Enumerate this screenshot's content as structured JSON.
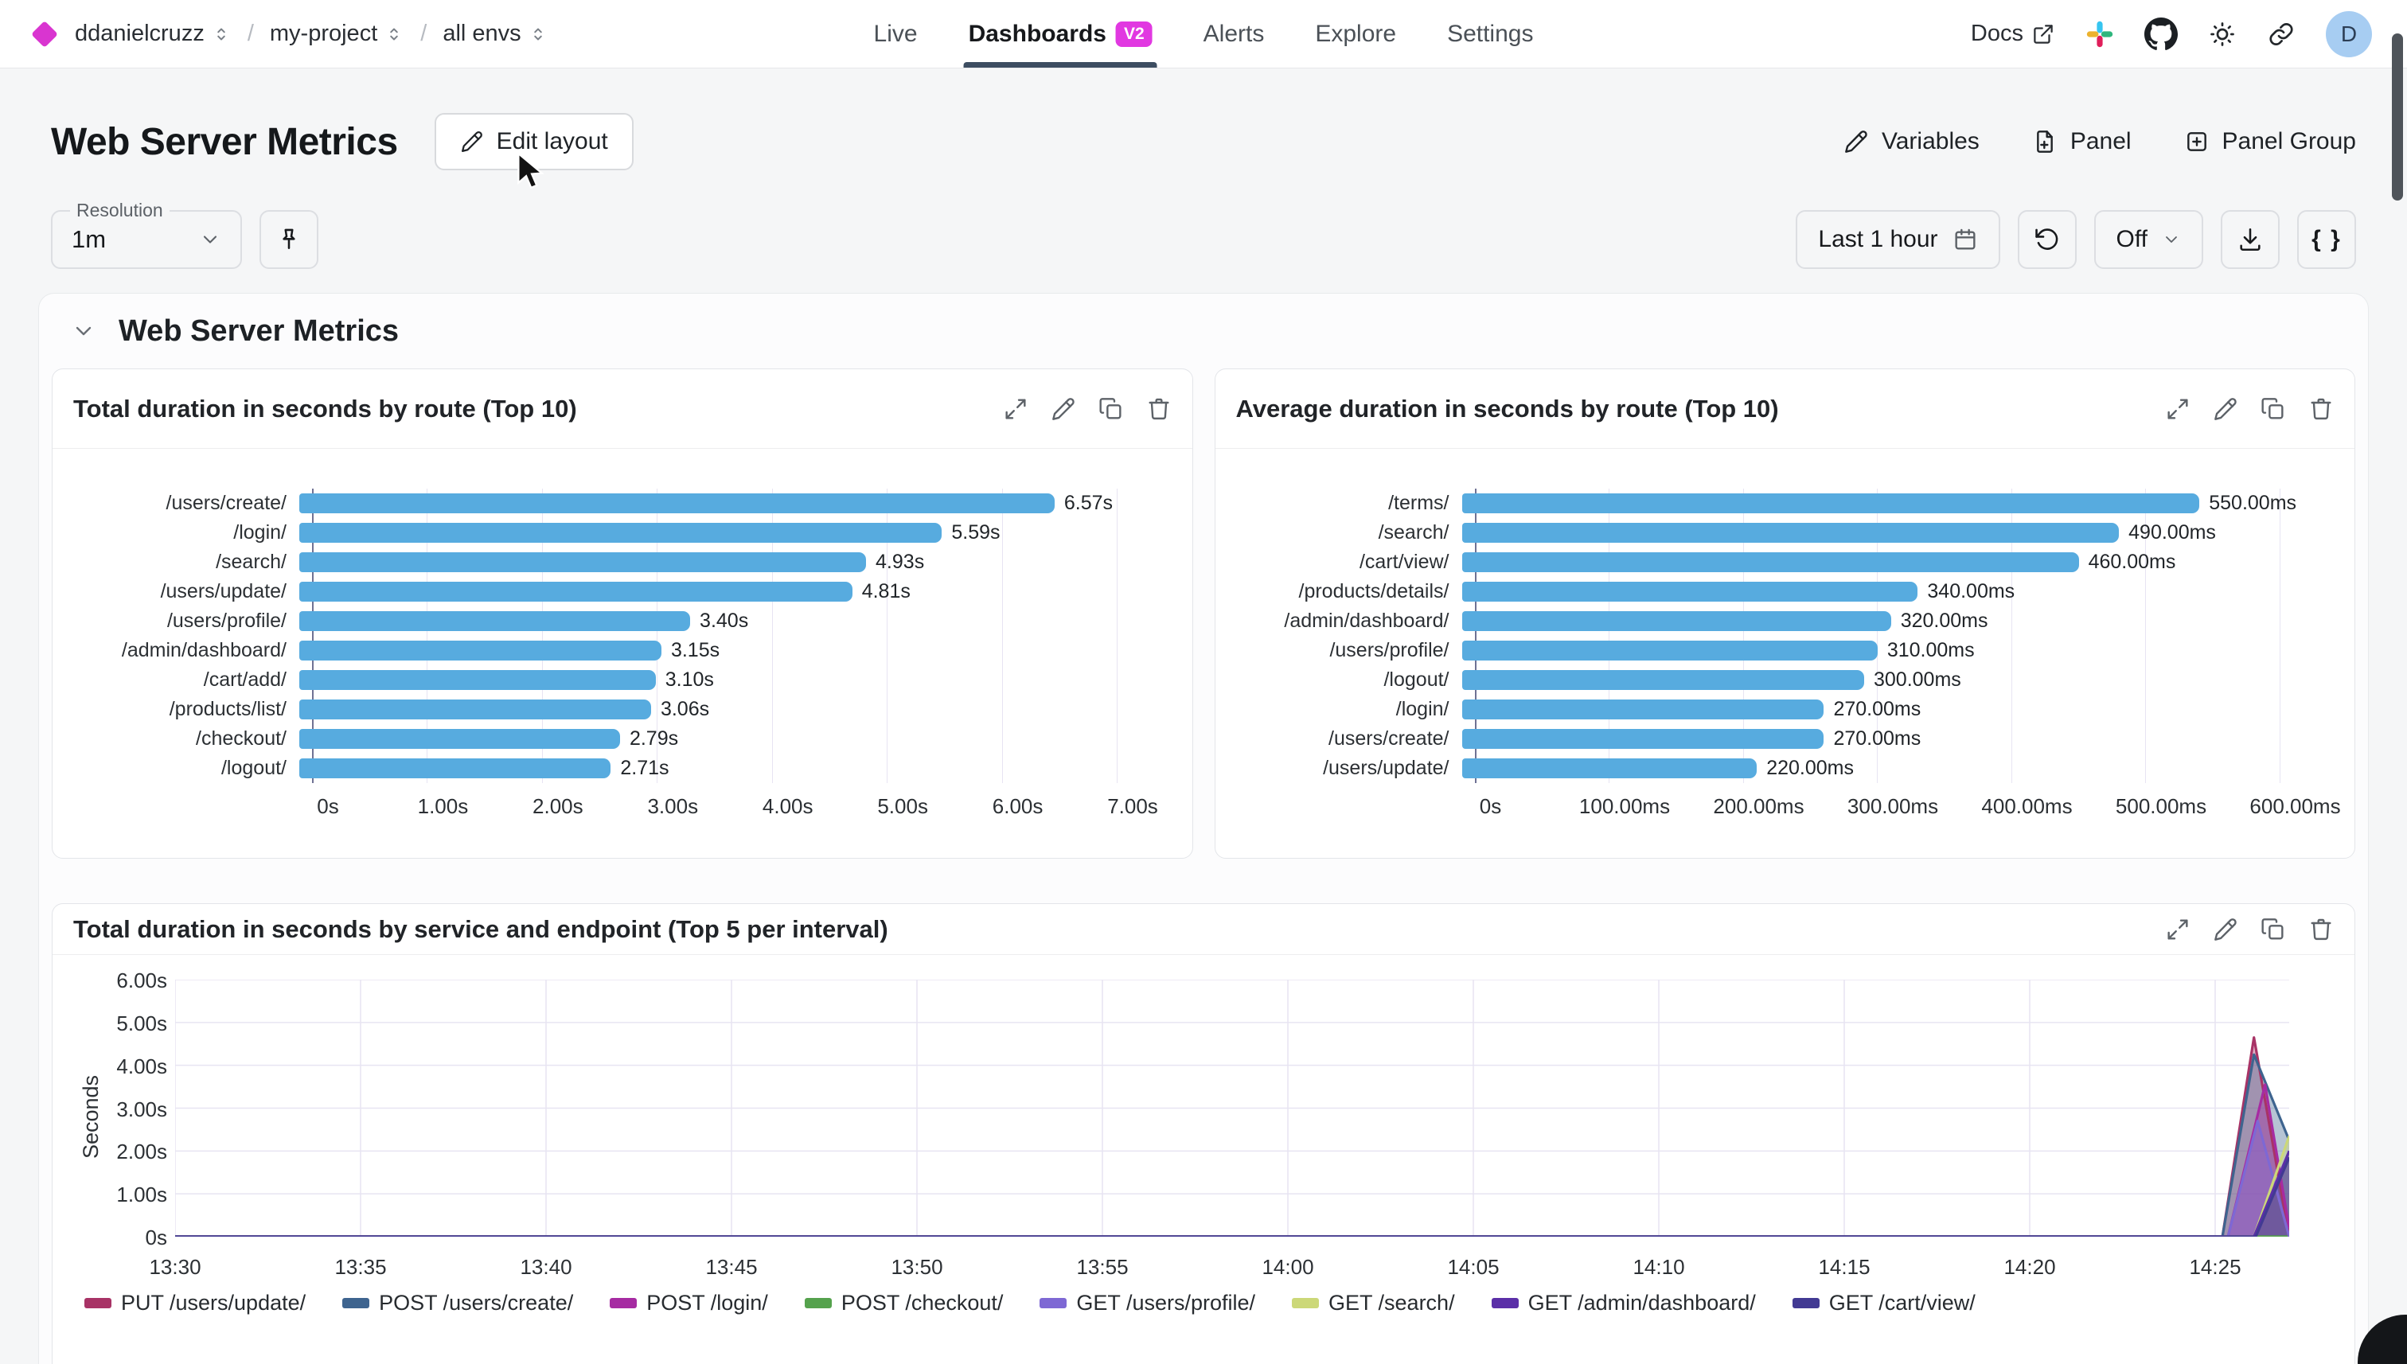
{
  "nav": {
    "breadcrumb": {
      "org": "ddanielcruzz",
      "project": "my-project",
      "env": "all envs"
    },
    "tabs": [
      {
        "label": "Live"
      },
      {
        "label": "Dashboards",
        "badge": "V2",
        "active": true
      },
      {
        "label": "Alerts"
      },
      {
        "label": "Explore"
      },
      {
        "label": "Settings"
      }
    ],
    "docs_label": "Docs",
    "avatar_initial": "D"
  },
  "header": {
    "title": "Web Server Metrics",
    "edit_layout_label": "Edit layout",
    "variables_label": "Variables",
    "panel_label": "Panel",
    "panel_group_label": "Panel Group"
  },
  "toolbar": {
    "resolution_label": "Resolution",
    "resolution_value": "1m",
    "time_range_label": "Last 1 hour",
    "auto_refresh_value": "Off",
    "braces_label": "{ }"
  },
  "section": {
    "title": "Web Server Metrics"
  },
  "colors": {
    "accent_magenta": "#e138e1",
    "bar_blue": "#57abdf",
    "active_tab_underline": "#3d4d61",
    "avatar_bg": "#a7cdf2"
  },
  "chart_data": [
    {
      "type": "bar",
      "orientation": "horizontal",
      "title": "Total duration in seconds by route (Top 10)",
      "categories": [
        "/users/create/",
        "/login/",
        "/search/",
        "/users/update/",
        "/users/profile/",
        "/admin/dashboard/",
        "/cart/add/",
        "/products/list/",
        "/checkout/",
        "/logout/"
      ],
      "values": [
        6.57,
        5.59,
        4.93,
        4.81,
        3.4,
        3.15,
        3.1,
        3.06,
        2.79,
        2.71
      ],
      "value_labels": [
        "6.57s",
        "5.59s",
        "4.93s",
        "4.81s",
        "3.40s",
        "3.15s",
        "3.10s",
        "3.06s",
        "2.79s",
        "2.71s"
      ],
      "x_ticks": [
        "0s",
        "1.00s",
        "2.00s",
        "3.00s",
        "4.00s",
        "5.00s",
        "6.00s",
        "7.00s"
      ],
      "x_max": 7,
      "unit": "seconds",
      "bar_color": "#57abdf",
      "grid": true
    },
    {
      "type": "bar",
      "orientation": "horizontal",
      "title": "Average duration in seconds by route (Top 10)",
      "categories": [
        "/terms/",
        "/search/",
        "/cart/view/",
        "/products/details/",
        "/admin/dashboard/",
        "/users/profile/",
        "/logout/",
        "/login/",
        "/users/create/",
        "/users/update/"
      ],
      "values": [
        550,
        490,
        460,
        340,
        320,
        310,
        300,
        270,
        270,
        220
      ],
      "value_labels": [
        "550.00ms",
        "490.00ms",
        "460.00ms",
        "340.00ms",
        "320.00ms",
        "310.00ms",
        "300.00ms",
        "270.00ms",
        "270.00ms",
        "220.00ms"
      ],
      "x_ticks": [
        "0s",
        "100.00ms",
        "200.00ms",
        "300.00ms",
        "400.00ms",
        "500.00ms",
        "600.00ms"
      ],
      "x_max": 600,
      "unit": "milliseconds",
      "bar_color": "#57abdf",
      "grid": true
    },
    {
      "type": "area",
      "title": "Total duration in seconds by service and endpoint (Top 5 per interval)",
      "ylabel": "Seconds",
      "y_ticks": [
        "6.00s",
        "5.00s",
        "4.00s",
        "3.00s",
        "2.00s",
        "1.00s",
        "0s"
      ],
      "y_max": 6,
      "x_ticks": [
        "13:30",
        "13:35",
        "13:40",
        "13:45",
        "13:50",
        "13:55",
        "14:00",
        "14:05",
        "14:10",
        "14:15",
        "14:20",
        "14:25"
      ],
      "x_tick_interval_minutes": 5,
      "x_range_minutes": [
        0,
        57
      ],
      "grid": true,
      "legend_position": "bottom",
      "series": [
        {
          "name": "PUT /users/update/",
          "color": "#a83366",
          "points": [
            [
              0,
              0
            ],
            [
              55.2,
              0
            ],
            [
              56.05,
              4.65
            ],
            [
              57,
              0
            ]
          ]
        },
        {
          "name": "POST /users/create/",
          "color": "#3e648f",
          "points": [
            [
              0,
              0
            ],
            [
              55.2,
              0
            ],
            [
              56.05,
              4.25
            ],
            [
              57,
              2.25
            ]
          ]
        },
        {
          "name": "POST /login/",
          "color": "#a62ba2",
          "points": [
            [
              0,
              0
            ],
            [
              55.35,
              0
            ],
            [
              56.35,
              3.55
            ],
            [
              57,
              0.2
            ]
          ]
        },
        {
          "name": "POST /checkout/",
          "color": "#55a24d",
          "points": [
            [
              0,
              0
            ],
            [
              57,
              0
            ]
          ]
        },
        {
          "name": "GET /users/profile/",
          "color": "#7e68d4",
          "points": [
            [
              0,
              0
            ],
            [
              55.35,
              0
            ],
            [
              56.15,
              2.7
            ],
            [
              57,
              0
            ]
          ]
        },
        {
          "name": "GET /search/",
          "color": "#ccd878",
          "points": [
            [
              0,
              0
            ],
            [
              56.05,
              0
            ],
            [
              57,
              2.35
            ]
          ]
        },
        {
          "name": "GET /admin/dashboard/",
          "color": "#5b2fa8",
          "points": [
            [
              0,
              0
            ],
            [
              56.05,
              0
            ],
            [
              57,
              2.0
            ]
          ]
        },
        {
          "name": "GET /cart/view/",
          "color": "#423a93",
          "points": [
            [
              0,
              0
            ],
            [
              56.1,
              0
            ],
            [
              57,
              1.85
            ]
          ]
        }
      ]
    }
  ]
}
